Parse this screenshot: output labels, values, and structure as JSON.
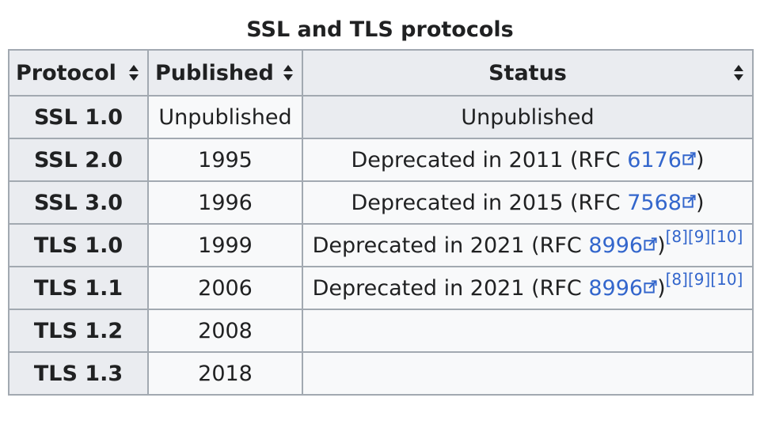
{
  "caption": "SSL and TLS protocols",
  "columns": [
    {
      "label": "Protocol",
      "sort_icon": "sort-both-icon"
    },
    {
      "label": "Published",
      "sort_icon": "sort-both-icon"
    },
    {
      "label": "Status",
      "sort_icon": "sort-both-icon"
    }
  ],
  "rows": [
    {
      "protocol": "SSL 1.0",
      "published": "Unpublished",
      "status_text": "Unpublished",
      "rfc": "",
      "refs": []
    },
    {
      "protocol": "SSL 2.0",
      "published": "1995",
      "status_text": "Deprecated in 2011 (RFC ",
      "rfc": "6176",
      "close": ")",
      "refs": []
    },
    {
      "protocol": "SSL 3.0",
      "published": "1996",
      "status_text": "Deprecated in 2015 (RFC ",
      "rfc": "7568",
      "close": ")",
      "refs": []
    },
    {
      "protocol": "TLS 1.0",
      "published": "1999",
      "status_text": "Deprecated in 2021 (RFC ",
      "rfc": "8996",
      "close": ")",
      "refs": [
        "[8]",
        "[9]",
        "[10]"
      ]
    },
    {
      "protocol": "TLS 1.1",
      "published": "2006",
      "status_text": "Deprecated in 2021 (RFC ",
      "rfc": "8996",
      "close": ")",
      "refs": [
        "[8]",
        "[9]",
        "[10]"
      ]
    },
    {
      "protocol": "TLS 1.2",
      "published": "2008",
      "status_text": "",
      "rfc": "",
      "refs": []
    },
    {
      "protocol": "TLS 1.3",
      "published": "2018",
      "status_text": "",
      "rfc": "",
      "refs": []
    }
  ],
  "colors": {
    "link": "#3366cc",
    "header_bg": "#eaecf0",
    "cell_bg": "#f8f9fa",
    "border": "#a2a9b1",
    "text": "#202122"
  }
}
